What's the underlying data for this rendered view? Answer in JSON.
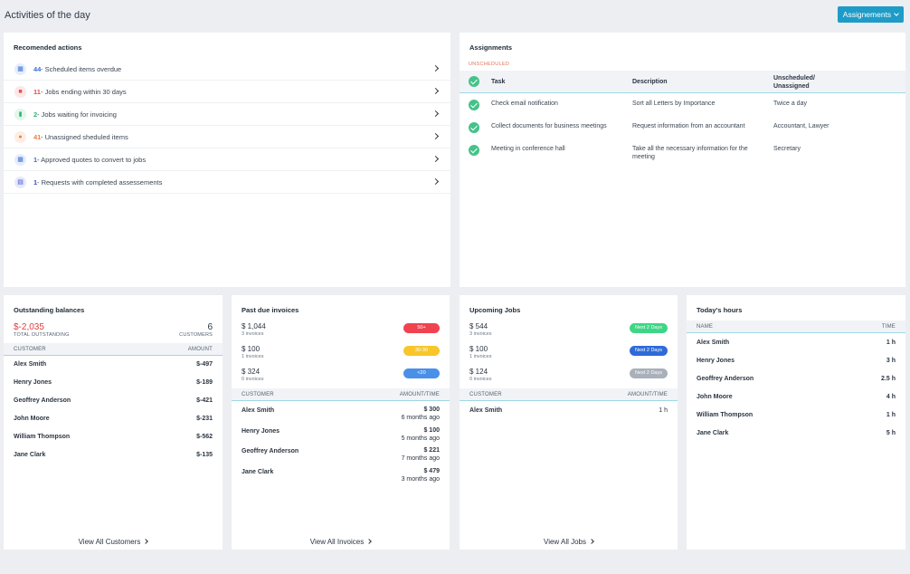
{
  "header": {
    "title": "Activities of the day",
    "assignments_button": "Assignements"
  },
  "recommended": {
    "title": "Recomended actions",
    "items": [
      {
        "count": "44",
        "text": " - Scheduled items overdue",
        "icon": "calendar-icon",
        "color": "#3b6fd6",
        "bg": "#e6eefc"
      },
      {
        "count": "11",
        "text": " - Jobs ending within 30 days",
        "icon": "briefcase-icon",
        "color": "#e24b4b",
        "bg": "#fde7e7"
      },
      {
        "count": "2",
        "text": " - Jobs waiting for invoicing",
        "icon": "document-icon",
        "color": "#2fb36e",
        "bg": "#e3f6ec"
      },
      {
        "count": "41",
        "text": " - Unassigned sheduled items",
        "icon": "person-icon",
        "color": "#ef7d3c",
        "bg": "#fdeee4"
      },
      {
        "count": "1",
        "text": " - Approved quotes to convert to jobs",
        "icon": "calendar-icon",
        "color": "#3b6fd6",
        "bg": "#e6eefc"
      },
      {
        "count": "1",
        "text": " - Requests with completed assessements",
        "icon": "clipboard-icon",
        "color": "#3b4fc4",
        "bg": "#e7e9fb"
      }
    ]
  },
  "assignments": {
    "title": "Assignments",
    "section": "UNSCHEDULED",
    "columns": {
      "task": "Task",
      "description": "Description",
      "assigned_line1": "Unscheduled/",
      "assigned_line2": "Unassigned"
    },
    "rows": [
      {
        "task": "Check email notification",
        "description": "Sort all Letters by Importance",
        "assigned": "Twice a day"
      },
      {
        "task": "Collect documents for business meetings",
        "description": "Request information from an accountant",
        "assigned": "Accountant, Lawyer"
      },
      {
        "task": "Meeting in conference hall",
        "description": "Take all the necessary information for the meeting",
        "assigned": "Secretary"
      }
    ]
  },
  "outstanding": {
    "title": "Outstanding balances",
    "total": "$-2,035",
    "total_label": "TOTAL OUTSTANDING",
    "customers": "6",
    "customers_label": "CUSTOMERS",
    "col_customer": "CUSTOMER",
    "col_amount": "AMOUNT",
    "rows": [
      {
        "name": "Alex Smith",
        "amount": "$-497"
      },
      {
        "name": "Henry Jones",
        "amount": "$-189"
      },
      {
        "name": "Geoffrey Anderson",
        "amount": "$-421"
      },
      {
        "name": "John Moore",
        "amount": "$-231"
      },
      {
        "name": "William Thompson",
        "amount": "$-562"
      },
      {
        "name": "Jane Clark",
        "amount": "$-135"
      }
    ],
    "footer": "View All Customers"
  },
  "pastdue": {
    "title": "Past due invoices",
    "summary": [
      {
        "amount": "$ 1,044",
        "sub": "3 invoices",
        "pill": "50+",
        "color": "#f0434f"
      },
      {
        "amount": "$ 100",
        "sub": "1 invoices",
        "pill": "30-30",
        "color": "#f8c62a"
      },
      {
        "amount": "$ 324",
        "sub": "0 invoices",
        "pill": "<20",
        "color": "#4a90e8"
      }
    ],
    "col_customer": "CUSTOMER",
    "col_amount": "AMOUNT/TIME",
    "rows": [
      {
        "name": "Alex Smith",
        "amount": "$ 300",
        "time": "6 months ago"
      },
      {
        "name": "Henry Jones",
        "amount": "$ 100",
        "time": "5 months ago"
      },
      {
        "name": "Geoffrey Anderson",
        "amount": "$ 221",
        "time": "7 months ago"
      },
      {
        "name": "Jane Clark",
        "amount": "$ 479",
        "time": "3 months ago"
      }
    ],
    "footer": "View All Invoices"
  },
  "upcoming": {
    "title": "Upcoming Jobs",
    "summary": [
      {
        "amount": "$ 544",
        "sub": "3 invoices",
        "pill": "Next 2 Days",
        "color": "#3ed686"
      },
      {
        "amount": "$ 100",
        "sub": "1 invoices",
        "pill": "Next 2 Days",
        "color": "#2e6bd8"
      },
      {
        "amount": "$ 124",
        "sub": "0 invoices",
        "pill": "Next 2 Days",
        "color": "#a9b0ba"
      }
    ],
    "col_customer": "CUSTOMER",
    "col_amount": "AMOUNT/TIME",
    "rows": [
      {
        "name": "Alex Smith",
        "amount": "1 h"
      }
    ],
    "footer": "View All Jobs"
  },
  "hours": {
    "title": "Today's hours",
    "col_name": "NAME",
    "col_time": "TIME",
    "rows": [
      {
        "name": "Alex Smith",
        "time": "1 h"
      },
      {
        "name": "Henry Jones",
        "time": "3 h"
      },
      {
        "name": "Geoffrey Anderson",
        "time": "2.5 h"
      },
      {
        "name": "John Moore",
        "time": "4 h"
      },
      {
        "name": "William Thompson",
        "time": "1 h"
      },
      {
        "name": "Jane Clark",
        "time": "5 h"
      }
    ]
  }
}
